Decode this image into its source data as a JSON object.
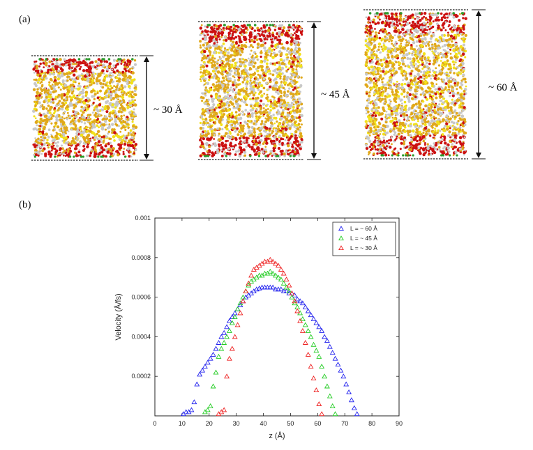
{
  "panel_a": {
    "label": "(a)",
    "boxes": [
      {
        "height_label": "~ 30 Å"
      },
      {
        "height_label": "~ 45 Å"
      },
      {
        "height_label": "~ 60 Å"
      }
    ],
    "colors": {
      "wall": "#444444",
      "surface": "#cc1111",
      "liquid": "#e0a81a",
      "yellow": "#f2e21a",
      "gray": "#c8c8c8",
      "green": "#2a9a2a"
    }
  },
  "panel_b": {
    "label": "(b)"
  },
  "chart_data": {
    "type": "scatter",
    "xlabel": "z (Å)",
    "ylabel": "Velocity (Å/fs)",
    "xlim": [
      0,
      90
    ],
    "ylim": [
      0,
      0.001
    ],
    "xticks": [
      0,
      10,
      20,
      30,
      40,
      50,
      60,
      70,
      80,
      90
    ],
    "yticks": [
      0.0002,
      0.0004,
      0.0006,
      0.0008,
      0.001
    ],
    "ytick_labels": [
      "0.0002",
      "0.0004",
      "0.0006",
      "0.0008",
      "0.001"
    ],
    "grid": false,
    "legend_position": "top-right",
    "marker": "open-triangle",
    "series": [
      {
        "name": "L = ~ 60 Å",
        "color": "#2222ee",
        "x": [
          10.5,
          11.5,
          12.5,
          13.5,
          14.5,
          15.5,
          16.5,
          17.5,
          18.5,
          19.5,
          20.5,
          21.5,
          22.5,
          23.5,
          24.5,
          25.5,
          26.5,
          27.5,
          28.5,
          29.5,
          30.5,
          31.5,
          32.5,
          33.5,
          34.5,
          35.5,
          36.5,
          37.5,
          38.5,
          39.5,
          40.5,
          41.5,
          42.5,
          43.5,
          44.5,
          45.5,
          46.5,
          47.5,
          48.5,
          49.5,
          50.5,
          51.5,
          52.5,
          53.5,
          54.5,
          55.5,
          56.5,
          57.5,
          58.5,
          59.5,
          60.5,
          61.5,
          62.5,
          63.5,
          64.5,
          65.5,
          66.5,
          67.5,
          68.5,
          69.5,
          70.5,
          71.5,
          72.5,
          73.5,
          74.5
        ],
        "y": [
          1e-05,
          2e-05,
          2e-05,
          3e-05,
          7e-05,
          0.00016,
          0.00021,
          0.00023,
          0.00025,
          0.00027,
          0.00029,
          0.00031,
          0.00034,
          0.00037,
          0.0004,
          0.00042,
          0.00045,
          0.00048,
          0.0005,
          0.00052,
          0.00054,
          0.00056,
          0.00058,
          0.0006,
          0.00061,
          0.00062,
          0.00063,
          0.00064,
          0.000645,
          0.00065,
          0.00065,
          0.00065,
          0.00065,
          0.00065,
          0.00064,
          0.00064,
          0.00064,
          0.00063,
          0.00063,
          0.00062,
          0.00062,
          0.00061,
          0.00059,
          0.00058,
          0.00057,
          0.00055,
          0.00053,
          0.00051,
          0.00049,
          0.00047,
          0.00045,
          0.00043,
          0.0004,
          0.00038,
          0.00035,
          0.00032,
          0.00029,
          0.00026,
          0.00023,
          0.0002,
          0.00016,
          0.00012,
          8e-05,
          4e-05,
          1e-05
        ]
      },
      {
        "name": "L = ~ 45 Å",
        "color": "#22cc22",
        "x": [
          18.5,
          19.5,
          20.5,
          21.5,
          22.5,
          23.5,
          24.5,
          25.5,
          26.5,
          27.5,
          28.5,
          29.5,
          30.5,
          31.5,
          32.5,
          33.5,
          34.5,
          35.5,
          36.5,
          37.5,
          38.5,
          39.5,
          40.5,
          41.5,
          42.5,
          43.5,
          44.5,
          45.5,
          46.5,
          47.5,
          48.5,
          49.5,
          50.5,
          51.5,
          52.5,
          53.5,
          54.5,
          55.5,
          56.5,
          57.5,
          58.5,
          59.5,
          60.5,
          61.5,
          62.5,
          63.5,
          64.5,
          65.5,
          66.5
        ],
        "y": [
          2e-05,
          3e-05,
          5e-05,
          0.00015,
          0.00022,
          0.0003,
          0.00034,
          0.00037,
          0.0004,
          0.00043,
          0.00047,
          0.0005,
          0.00054,
          0.00057,
          0.0006,
          0.00063,
          0.00066,
          0.00068,
          0.00069,
          0.0007,
          0.00071,
          0.00071,
          0.00072,
          0.00072,
          0.00073,
          0.00072,
          0.00071,
          0.0007,
          0.00069,
          0.00067,
          0.00065,
          0.00063,
          0.0006,
          0.00057,
          0.00055,
          0.00052,
          0.00049,
          0.00046,
          0.00043,
          0.0004,
          0.00036,
          0.00033,
          0.0003,
          0.00025,
          0.0002,
          0.00015,
          0.0001,
          5e-05,
          1e-05
        ]
      },
      {
        "name": "L = ~ 30 Å",
        "color": "#ee2222",
        "x": [
          23.5,
          24.5,
          25.5,
          26.5,
          27.5,
          28.5,
          29.5,
          30.5,
          31.5,
          32.5,
          33.5,
          34.5,
          35.5,
          36.5,
          37.5,
          38.5,
          39.5,
          40.5,
          41.5,
          42.5,
          43.5,
          44.5,
          45.5,
          46.5,
          47.5,
          48.5,
          49.5,
          50.5,
          51.5,
          52.5,
          53.5,
          54.5,
          55.5,
          56.5,
          57.5,
          58.5,
          59.5,
          60.5,
          61.5
        ],
        "y": [
          1e-05,
          2e-05,
          3e-05,
          0.0002,
          0.00029,
          0.00034,
          0.0004,
          0.00046,
          0.00052,
          0.00058,
          0.00063,
          0.00067,
          0.00071,
          0.00074,
          0.00075,
          0.00076,
          0.00077,
          0.00078,
          0.00078,
          0.00079,
          0.00078,
          0.00077,
          0.00076,
          0.00074,
          0.00072,
          0.00069,
          0.00066,
          0.00062,
          0.00058,
          0.00053,
          0.00048,
          0.00043,
          0.00037,
          0.00031,
          0.00025,
          0.00019,
          0.00013,
          6e-05,
          1e-05
        ]
      }
    ]
  }
}
